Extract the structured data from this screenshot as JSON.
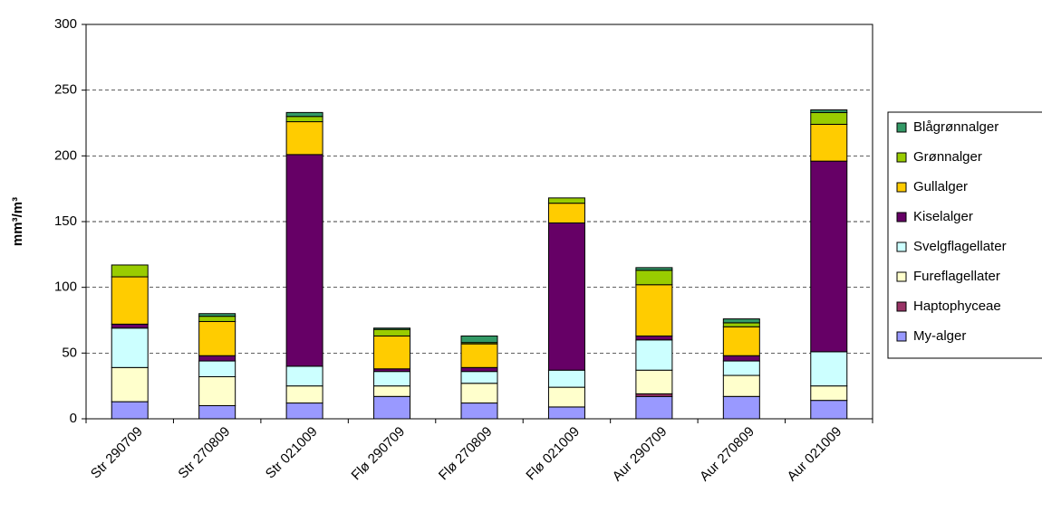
{
  "chart_data": {
    "type": "stacked-bar",
    "y_label": "mm³/m³",
    "categories": [
      "Str 290709",
      "Str 270809",
      "Str 021009",
      "Flø 290709",
      "Flø 270809",
      "Flø 021009",
      "Aur 290709",
      "Aur 270809",
      "Aur 021009"
    ],
    "series": [
      {
        "name": "My-alger",
        "color": "#9999ff",
        "values": [
          13,
          10,
          12,
          17,
          12,
          9,
          17,
          17,
          14
        ]
      },
      {
        "name": "Haptophyceae",
        "color": "#993366",
        "values": [
          0,
          0,
          0,
          0,
          0,
          0,
          2,
          0,
          0
        ]
      },
      {
        "name": "Fureflagellater",
        "color": "#ffffcc",
        "values": [
          26,
          22,
          13,
          8,
          15,
          15,
          18,
          16,
          11
        ]
      },
      {
        "name": "Svelgflagellater",
        "color": "#ccffff",
        "values": [
          30,
          12,
          15,
          11,
          9,
          13,
          23,
          11,
          26
        ]
      },
      {
        "name": "Kiselalger",
        "color": "#660066",
        "values": [
          3,
          4,
          161,
          2,
          3,
          112,
          3,
          4,
          145
        ]
      },
      {
        "name": "Gullalger",
        "color": "#ffcc00",
        "values": [
          36,
          26,
          25,
          25,
          18,
          15,
          39,
          22,
          28
        ]
      },
      {
        "name": "Grønnalger",
        "color": "#99cc00",
        "values": [
          9,
          4,
          4,
          5,
          1,
          4,
          11,
          3,
          9
        ]
      },
      {
        "name": "Blågrønnalger",
        "color": "#339966",
        "values": [
          0,
          2,
          3,
          1,
          5,
          0,
          2,
          3,
          2
        ]
      }
    ],
    "ylim": [
      0,
      300
    ],
    "yticks": [
      0,
      50,
      100,
      150,
      200,
      250,
      300
    ],
    "grid": true,
    "legend": "right"
  }
}
